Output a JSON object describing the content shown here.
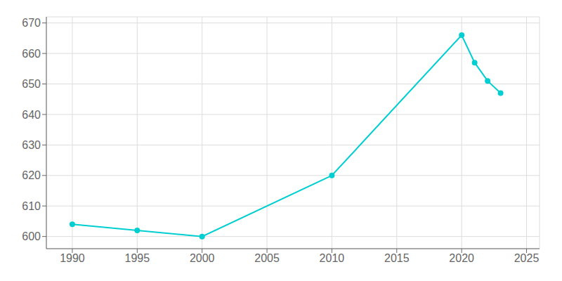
{
  "chart_data": {
    "type": "line",
    "x": [
      1990,
      1995,
      2000,
      2010,
      2020,
      2021,
      2022,
      2023
    ],
    "values": [
      604,
      602,
      600,
      620,
      666,
      657,
      651,
      647
    ],
    "color": "#00CED1",
    "marker": "circle",
    "xlim": [
      1988,
      2026
    ],
    "ylim": [
      596,
      672
    ],
    "xticks": [
      1990,
      1995,
      2000,
      2005,
      2010,
      2015,
      2020,
      2025
    ],
    "yticks": [
      600,
      610,
      620,
      630,
      640,
      650,
      660,
      670
    ],
    "grid": true
  }
}
